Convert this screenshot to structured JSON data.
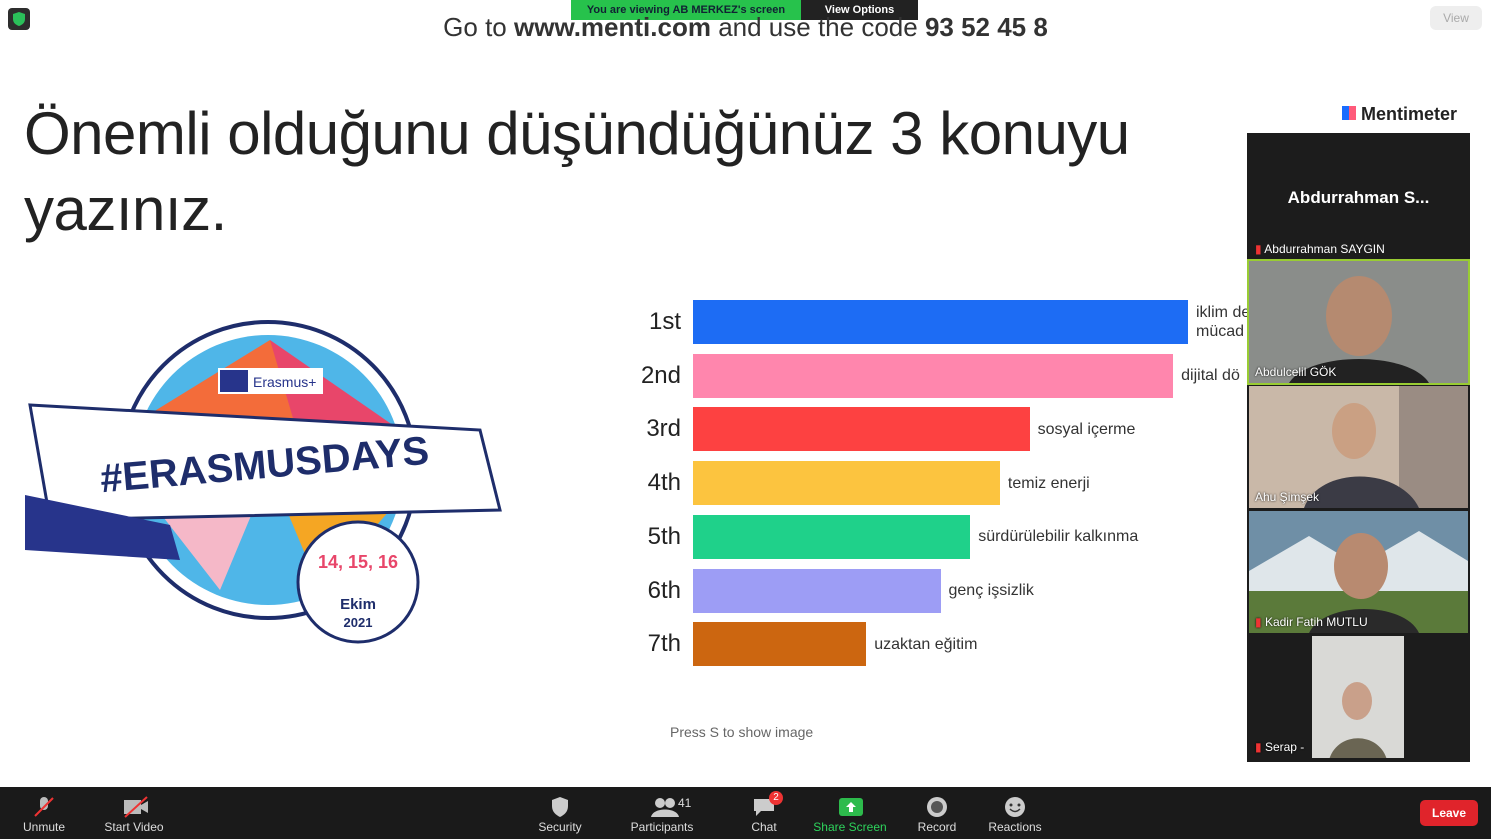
{
  "banner": {
    "viewing": "You are viewing AB MERKEZ's screen",
    "options": "View Options"
  },
  "view_button": "View",
  "instruction": {
    "pre": "Go to",
    "url": "www.menti.com",
    "mid": "and use the code",
    "code": "93 52 45 8"
  },
  "brand": "Mentimeter",
  "question": {
    "line1": "Önemli olduğunu düşündüğünüz 3 konuyu",
    "line2": "yazınız."
  },
  "logo": {
    "program": "Erasmus+",
    "hashtag": "#ERASMUSDAYS",
    "dates": "14, 15, 16",
    "month": "Ekim",
    "year": "2021"
  },
  "ranking": {
    "xlim": [
      0,
      100
    ],
    "items": [
      {
        "rank": "1st",
        "label": [
          "iklim de",
          "mücad"
        ],
        "score": 100,
        "color": "#1d6cf4"
      },
      {
        "rank": "2nd",
        "label": [
          "dijital dö"
        ],
        "score": 97,
        "color": "#ff86ad"
      },
      {
        "rank": "3rd",
        "label": [
          "sosyal içerme"
        ],
        "score": 68,
        "color": "#fd4141"
      },
      {
        "rank": "4th",
        "label": [
          "temiz enerji"
        ],
        "score": 62,
        "color": "#fcc43f"
      },
      {
        "rank": "5th",
        "label": [
          "sürdürülebilir kalkınma"
        ],
        "score": 56,
        "color": "#1fd18a"
      },
      {
        "rank": "6th",
        "label": [
          "genç işsizlik"
        ],
        "score": 50,
        "color": "#9d9df5"
      },
      {
        "rank": "7th",
        "label": [
          "uzaktan eğitim"
        ],
        "score": 35,
        "color": "#cc6610"
      }
    ]
  },
  "hint": "Press S to show image",
  "participants_panel": {
    "speaker": "Abdurrahman S...",
    "tiles": [
      "Abdurrahman SAYGIN",
      "Abdulcelil GÖK",
      "Ahu Şimşek",
      "Kadir Fatih MUTLU",
      "Serap -"
    ]
  },
  "toolbar": {
    "unmute": "Unmute",
    "start_video": "Start Video",
    "security": "Security",
    "participants": "Participants",
    "participant_count": 41,
    "chat": "Chat",
    "chat_badge": 2,
    "share_screen": "Share Screen",
    "record": "Record",
    "reactions": "Reactions",
    "leave": "Leave"
  }
}
